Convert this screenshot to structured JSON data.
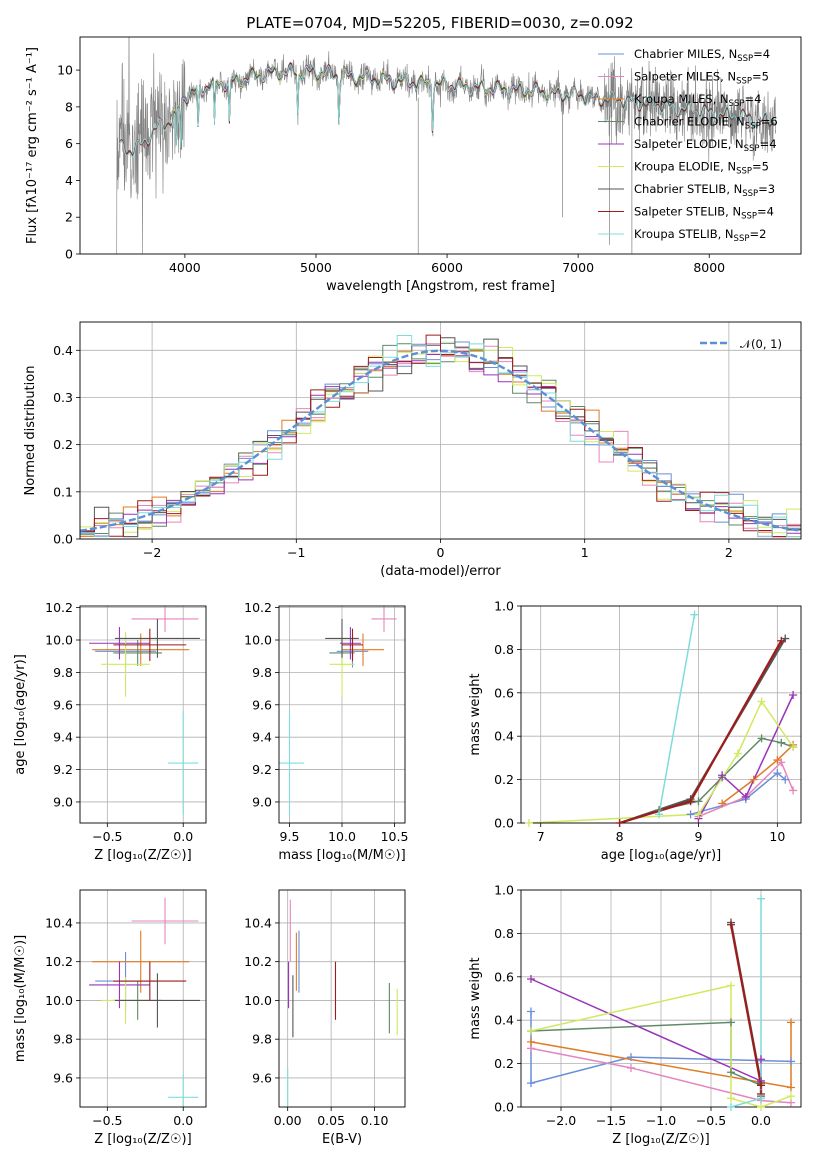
{
  "colors": {
    "Chabrier MILES": "#6a8fd8",
    "Salpeter MILES": "#e585bd",
    "Kroupa MILES": "#e07b26",
    "Chabrier ELODIE": "#5e8a66",
    "Salpeter ELODIE": "#9a34b8",
    "Kroupa ELODIE": "#cfea5e",
    "Chabrier STELIB": "#555555",
    "Salpeter STELIB": "#9e1c1c",
    "Kroupa STELIB": "#7fdcdc",
    "data": "#808080",
    "gaussian": "#5b8fd6"
  },
  "chart_data": [
    {
      "id": "spectrum",
      "type": "line",
      "title": "PLATE=0704, MJD=52205, FIBERID=0030, z=0.092",
      "xlabel": "wavelength [Angstrom, rest frame]",
      "ylabel": "Flux [fλ10⁻¹⁷ erg cm⁻² s⁻¹ A⁻¹]",
      "xlim": [
        3200,
        8700
      ],
      "ylim": [
        0,
        11.8
      ],
      "xticks": [
        4000,
        5000,
        6000,
        7000,
        8000
      ],
      "yticks": [
        0,
        2,
        4,
        6,
        8,
        10
      ],
      "legend": "upper-right",
      "legend_entries": [
        {
          "series": "Chabrier MILES",
          "label": "Chabrier MILES, N",
          "sub": "SSP",
          "tail": "=4"
        },
        {
          "series": "Salpeter MILES",
          "label": "Salpeter MILES, N",
          "sub": "SSP",
          "tail": "=5"
        },
        {
          "series": "Kroupa MILES",
          "label": "Kroupa MILES, N",
          "sub": "SSP",
          "tail": "=4"
        },
        {
          "series": "Chabrier ELODIE",
          "label": "Chabrier ELODIE, N",
          "sub": "SSP",
          "tail": "=6"
        },
        {
          "series": "Salpeter ELODIE",
          "label": "Salpeter ELODIE, N",
          "sub": "SSP",
          "tail": "=4"
        },
        {
          "series": "Kroupa ELODIE",
          "label": "Kroupa ELODIE, N",
          "sub": "SSP",
          "tail": "=5"
        },
        {
          "series": "Chabrier STELIB",
          "label": "Chabrier STELIB, N",
          "sub": "SSP",
          "tail": "=3"
        },
        {
          "series": "Salpeter STELIB",
          "label": "Salpeter STELIB, N",
          "sub": "SSP",
          "tail": "=4"
        },
        {
          "series": "Kroupa STELIB",
          "label": "Kroupa STELIB, N",
          "sub": "SSP",
          "tail": "=2"
        }
      ],
      "continuum": [
        [
          3500,
          5.8
        ],
        [
          3600,
          5.6
        ],
        [
          3700,
          6.2
        ],
        [
          3800,
          6.9
        ],
        [
          3900,
          7.2
        ],
        [
          4000,
          8.6
        ],
        [
          4200,
          9.2
        ],
        [
          4400,
          9.4
        ],
        [
          4600,
          9.8
        ],
        [
          4800,
          9.9
        ],
        [
          5000,
          9.9
        ],
        [
          5200,
          9.7
        ],
        [
          5500,
          9.5
        ],
        [
          5800,
          9.3
        ],
        [
          6000,
          9.2
        ],
        [
          6300,
          9.0
        ],
        [
          6600,
          8.9
        ],
        [
          7000,
          8.6
        ],
        [
          7500,
          8.2
        ],
        [
          8000,
          7.7
        ],
        [
          8300,
          7.4
        ],
        [
          8500,
          7.2
        ]
      ],
      "model_start": {
        "Chabrier MILES": 3500,
        "Salpeter MILES": 3500,
        "Kroupa MILES": 3500,
        "Chabrier ELODIE": 3900,
        "Salpeter ELODIE": 3900,
        "Kroupa ELODIE": 3900,
        "Chabrier STELIB": 3500,
        "Salpeter STELIB": 3500,
        "Kroupa STELIB": 3500
      },
      "model_end": {
        "Chabrier MILES": 7400,
        "Salpeter MILES": 7400,
        "Kroupa MILES": 7400,
        "Chabrier ELODIE": 6800,
        "Salpeter ELODIE": 6800,
        "Kroupa ELODIE": 6800,
        "Chabrier STELIB": 8500,
        "Salpeter STELIB": 8500,
        "Kroupa STELIB": 8500
      }
    },
    {
      "id": "residuals",
      "type": "histogram",
      "xlabel": "(data-model)/error",
      "ylabel": "Normed distribution",
      "xlim": [
        -2.5,
        2.5
      ],
      "ylim": [
        0,
        0.46
      ],
      "xticks": [
        -2,
        -1,
        0,
        1,
        2
      ],
      "yticks": [
        0.0,
        0.1,
        0.2,
        0.3,
        0.4
      ],
      "grid": true,
      "legend": "upper-right",
      "legend_label": "𝒩(0, 1)",
      "bin_width": 0.1
    },
    {
      "id": "z-age",
      "type": "errorbar",
      "xlabel": "Z [log₁₀(Z/Z☉)]",
      "ylabel": "age  [log₁₀(age/yr)]",
      "xlim": [
        -0.68,
        0.15
      ],
      "ylim": [
        8.87,
        10.21
      ],
      "xticks": [
        -0.5,
        0.0
      ],
      "yticks": [
        9.0,
        9.2,
        9.4,
        9.6,
        9.8,
        10.0,
        10.2
      ],
      "grid": true,
      "points": [
        {
          "series": "Chabrier MILES",
          "x": -0.38,
          "xe": 0.2,
          "y": 9.93,
          "ye": 0.1
        },
        {
          "series": "Salpeter MILES",
          "x": -0.12,
          "xe": 0.22,
          "y": 10.13,
          "ye": 0.08
        },
        {
          "series": "Kroupa MILES",
          "x": -0.28,
          "xe": 0.32,
          "y": 9.94,
          "ye": 0.1
        },
        {
          "series": "Chabrier ELODIE",
          "x": -0.3,
          "xe": 0.16,
          "y": 9.92,
          "ye": 0.08
        },
        {
          "series": "Salpeter ELODIE",
          "x": -0.42,
          "xe": 0.2,
          "y": 9.98,
          "ye": 0.1
        },
        {
          "series": "Kroupa ELODIE",
          "x": -0.38,
          "xe": 0.16,
          "y": 9.85,
          "ye": 0.2
        },
        {
          "series": "Chabrier STELIB",
          "x": -0.17,
          "xe": 0.28,
          "y": 10.01,
          "ye": 0.12
        },
        {
          "series": "Salpeter STELIB",
          "x": -0.22,
          "xe": 0.24,
          "y": 9.97,
          "ye": 0.1
        },
        {
          "series": "Kroupa STELIB",
          "x": 0.0,
          "xe": 0.1,
          "y": 9.24,
          "ye": 0.32
        }
      ]
    },
    {
      "id": "mass-age",
      "type": "errorbar",
      "xlabel": "mass [log₁₀(M/M☉)]",
      "xlim": [
        9.4,
        10.6
      ],
      "ylim": [
        8.87,
        10.21
      ],
      "xticks": [
        9.5,
        10.0,
        10.5
      ],
      "yticks": [
        9.0,
        9.2,
        9.4,
        9.6,
        9.8,
        10.0,
        10.2
      ],
      "grid": true,
      "points": [
        {
          "series": "Chabrier MILES",
          "x": 10.1,
          "xe": 0.15,
          "y": 9.93,
          "ye": 0.1
        },
        {
          "series": "Salpeter MILES",
          "x": 10.4,
          "xe": 0.12,
          "y": 10.13,
          "ye": 0.08
        },
        {
          "series": "Kroupa MILES",
          "x": 10.2,
          "xe": 0.2,
          "y": 9.94,
          "ye": 0.1
        },
        {
          "series": "Chabrier ELODIE",
          "x": 10.0,
          "xe": 0.12,
          "y": 9.92,
          "ye": 0.08
        },
        {
          "series": "Salpeter ELODIE",
          "x": 10.08,
          "xe": 0.1,
          "y": 9.98,
          "ye": 0.1
        },
        {
          "series": "Kroupa ELODIE",
          "x": 10.0,
          "xe": 0.12,
          "y": 9.85,
          "ye": 0.2
        },
        {
          "series": "Chabrier STELIB",
          "x": 10.0,
          "xe": 0.16,
          "y": 10.01,
          "ye": 0.12
        },
        {
          "series": "Salpeter STELIB",
          "x": 10.1,
          "xe": 0.1,
          "y": 9.97,
          "ye": 0.1
        },
        {
          "series": "Kroupa STELIB",
          "x": 9.5,
          "xe": 0.14,
          "y": 9.24,
          "ye": 0.32
        }
      ]
    },
    {
      "id": "age-weight",
      "type": "line",
      "xlabel": "age  [log₁₀(age/yr)]",
      "ylabel": "mass weight",
      "xlim": [
        6.75,
        10.3
      ],
      "ylim": [
        0,
        1.0
      ],
      "xticks": [
        7,
        8,
        9,
        10
      ],
      "yticks": [
        0.0,
        0.2,
        0.4,
        0.6,
        0.8,
        1.0
      ],
      "grid": true,
      "series": [
        {
          "series": "Chabrier MILES",
          "x": [
            8.9,
            9.6,
            10.0,
            10.1
          ],
          "y": [
            0.04,
            0.11,
            0.23,
            0.2
          ]
        },
        {
          "series": "Salpeter MILES",
          "x": [
            9.0,
            9.6,
            10.05,
            10.2
          ],
          "y": [
            0.03,
            0.12,
            0.28,
            0.15
          ]
        },
        {
          "series": "Kroupa MILES",
          "x": [
            9.3,
            9.7,
            10.0,
            10.2
          ],
          "y": [
            0.09,
            0.2,
            0.29,
            0.36
          ]
        },
        {
          "series": "Chabrier ELODIE",
          "x": [
            8.5,
            9.0,
            9.3,
            9.8,
            10.05,
            10.2
          ],
          "y": [
            0.06,
            0.1,
            0.21,
            0.39,
            0.37,
            0.35
          ]
        },
        {
          "series": "Salpeter ELODIE",
          "x": [
            9.0,
            9.3,
            9.6,
            10.2
          ],
          "y": [
            0.02,
            0.22,
            0.12,
            0.59
          ]
        },
        {
          "series": "Kroupa ELODIE",
          "x": [
            6.85,
            9.0,
            9.5,
            9.8,
            10.2
          ],
          "y": [
            0.0,
            0.04,
            0.32,
            0.56,
            0.35
          ]
        },
        {
          "series": "Chabrier STELIB",
          "x": [
            8.0,
            8.9,
            10.1
          ],
          "y": [
            0.0,
            0.11,
            0.85
          ]
        },
        {
          "series": "Salpeter STELIB",
          "x": [
            8.0,
            8.9,
            10.05
          ],
          "y": [
            0.0,
            0.1,
            0.84
          ]
        },
        {
          "series": "Kroupa STELIB",
          "x": [
            8.5,
            8.95
          ],
          "y": [
            0.04,
            0.96
          ]
        }
      ]
    },
    {
      "id": "z-mass",
      "type": "errorbar",
      "xlabel": "Z [log₁₀(Z/Z☉)]",
      "ylabel": "mass [log₁₀(M/M☉)]",
      "xlim": [
        -0.68,
        0.15
      ],
      "ylim": [
        9.45,
        10.57
      ],
      "xticks": [
        -0.5,
        0.0
      ],
      "yticks": [
        9.6,
        9.8,
        10.0,
        10.2,
        10.4
      ],
      "grid": true,
      "points": [
        {
          "series": "Chabrier MILES",
          "x": -0.38,
          "xe": 0.2,
          "y": 10.1,
          "ye": 0.15
        },
        {
          "series": "Salpeter MILES",
          "x": -0.12,
          "xe": 0.22,
          "y": 10.41,
          "ye": 0.12
        },
        {
          "series": "Kroupa MILES",
          "x": -0.28,
          "xe": 0.32,
          "y": 10.2,
          "ye": 0.16
        },
        {
          "series": "Chabrier ELODIE",
          "x": -0.3,
          "xe": 0.16,
          "y": 10.0,
          "ye": 0.1
        },
        {
          "series": "Salpeter ELODIE",
          "x": -0.42,
          "xe": 0.2,
          "y": 10.08,
          "ye": 0.12
        },
        {
          "series": "Kroupa ELODIE",
          "x": -0.38,
          "xe": 0.16,
          "y": 10.0,
          "ye": 0.12
        },
        {
          "series": "Chabrier STELIB",
          "x": -0.17,
          "xe": 0.28,
          "y": 10.0,
          "ye": 0.14
        },
        {
          "series": "Salpeter STELIB",
          "x": -0.22,
          "xe": 0.24,
          "y": 10.1,
          "ye": 0.1
        },
        {
          "series": "Kroupa STELIB",
          "x": 0.0,
          "xe": 0.1,
          "y": 9.5,
          "ye": 0.12
        }
      ]
    },
    {
      "id": "ebv-mass",
      "type": "errorbar",
      "xlabel": "E(B-V)",
      "xlim": [
        -0.01,
        0.135
      ],
      "ylim": [
        9.45,
        10.57
      ],
      "xticks": [
        0.0,
        0.05,
        0.1
      ],
      "yticks": [
        9.6,
        9.8,
        10.0,
        10.2,
        10.4
      ],
      "grid": true,
      "points": [
        {
          "series": "Chabrier MILES",
          "x": 0.013,
          "xe": 0.0,
          "y": 10.2,
          "ye": 0.16
        },
        {
          "series": "Salpeter MILES",
          "x": 0.003,
          "xe": 0.0,
          "y": 10.36,
          "ye": 0.16
        },
        {
          "series": "Kroupa MILES",
          "x": 0.01,
          "xe": 0.0,
          "y": 10.2,
          "ye": 0.15
        },
        {
          "series": "Chabrier ELODIE",
          "x": 0.117,
          "xe": 0.0,
          "y": 9.96,
          "ye": 0.13
        },
        {
          "series": "Salpeter ELODIE",
          "x": 0.001,
          "xe": 0.0,
          "y": 10.08,
          "ye": 0.12
        },
        {
          "series": "Kroupa ELODIE",
          "x": 0.126,
          "xe": 0.0,
          "y": 9.94,
          "ye": 0.12
        },
        {
          "series": "Chabrier STELIB",
          "x": 0.006,
          "xe": 0.0,
          "y": 9.97,
          "ye": 0.16
        },
        {
          "series": "Salpeter STELIB",
          "x": 0.055,
          "xe": 0.0,
          "y": 10.05,
          "ye": 0.15
        },
        {
          "series": "Kroupa STELIB",
          "x": 0.0,
          "xe": 0.0,
          "y": 9.55,
          "ye": 0.1
        }
      ]
    },
    {
      "id": "z-weight",
      "type": "line",
      "xlabel": "Z [log₁₀(Z/Z☉)]",
      "ylabel": "mass weight",
      "xlim": [
        -2.4,
        0.4
      ],
      "ylim": [
        0,
        1.0
      ],
      "xticks": [
        -2.0,
        -1.5,
        -1.0,
        -0.5,
        0.0
      ],
      "yticks": [
        0.0,
        0.2,
        0.4,
        0.6,
        0.8,
        1.0
      ],
      "grid": true,
      "series": [
        {
          "series": "Chabrier MILES",
          "x": [
            -2.3,
            -2.3,
            -1.3,
            0.3
          ],
          "y": [
            0.44,
            0.11,
            0.23,
            0.21
          ]
        },
        {
          "series": "Salpeter MILES",
          "x": [
            -2.3,
            -1.3,
            0.0,
            0.3
          ],
          "y": [
            0.27,
            0.18,
            0.03,
            0.02
          ]
        },
        {
          "series": "Kroupa MILES",
          "x": [
            -2.3,
            0.3,
            0.3
          ],
          "y": [
            0.3,
            0.09,
            0.39
          ]
        },
        {
          "series": "Chabrier ELODIE",
          "x": [
            -2.3,
            -0.3,
            -0.3,
            0.0
          ],
          "y": [
            0.35,
            0.39,
            0.16,
            0.1
          ]
        },
        {
          "series": "Salpeter ELODIE",
          "x": [
            -2.3,
            0.0,
            0.0
          ],
          "y": [
            0.59,
            0.12,
            0.22
          ]
        },
        {
          "series": "Kroupa ELODIE",
          "x": [
            -2.3,
            -0.3,
            -0.3,
            0.0,
            0.3
          ],
          "y": [
            0.35,
            0.56,
            0.04,
            0.0,
            0.05
          ]
        },
        {
          "series": "Chabrier STELIB",
          "x": [
            -0.3,
            0.0,
            0.0
          ],
          "y": [
            0.85,
            0.11,
            0.05
          ]
        },
        {
          "series": "Salpeter STELIB",
          "x": [
            -0.3,
            0.0,
            0.0
          ],
          "y": [
            0.84,
            0.1,
            0.06
          ]
        },
        {
          "series": "Kroupa STELIB",
          "x": [
            -0.3,
            0.0,
            0.0
          ],
          "y": [
            0.0,
            0.04,
            0.96
          ]
        }
      ]
    }
  ]
}
